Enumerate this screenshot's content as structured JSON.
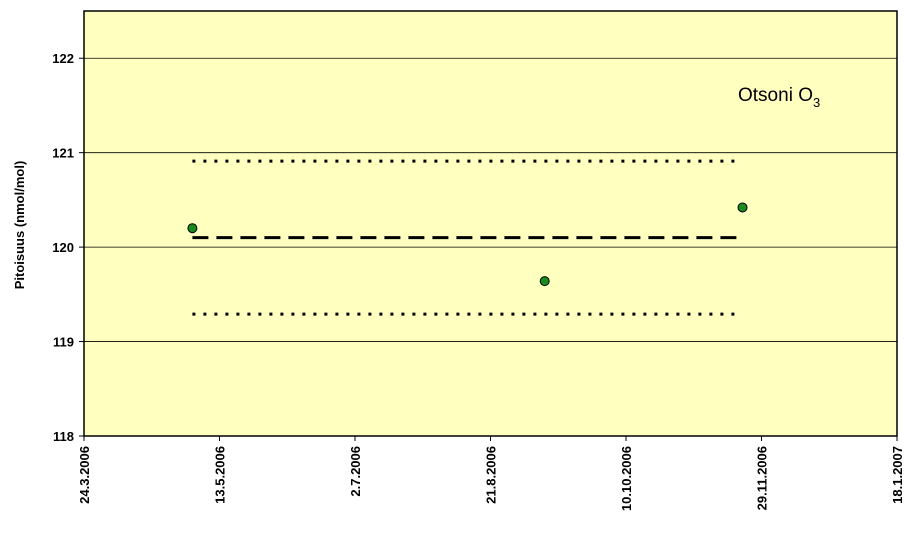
{
  "chart_data": {
    "type": "scatter",
    "annotation": {
      "text": "Otsoni O",
      "subscript": "3"
    },
    "y_label": "Pitoisuus (nmol/mol)",
    "xlim": [
      "24.3.2006",
      "18.1.2007"
    ],
    "xticks": [
      "24.3.2006",
      "13.5.2006",
      "2.7.2006",
      "21.8.2006",
      "10.10.2006",
      "29.11.2006",
      "18.1.2007"
    ],
    "ylim": [
      118,
      122.5
    ],
    "yticks": [
      118,
      119,
      120,
      121,
      122
    ],
    "grid": true,
    "legend": false,
    "background": "#ffffc0",
    "series": [
      {
        "kind": "points",
        "color": "#1a8a1a",
        "x": [
          "3.5.2006",
          "10.9.2006",
          "22.11.2006"
        ],
        "values": [
          120.2,
          119.64,
          120.42
        ]
      },
      {
        "kind": "line",
        "style": "dashed",
        "color": "#000000",
        "x": [
          "3.5.2006",
          "22.11.2006"
        ],
        "values": [
          120.1,
          120.1
        ]
      },
      {
        "kind": "line",
        "style": "dotted",
        "color": "#000000",
        "x": [
          "3.5.2006",
          "19.11.2006"
        ],
        "values": [
          120.91,
          120.91
        ]
      },
      {
        "kind": "line",
        "style": "dotted",
        "color": "#000000",
        "x": [
          "3.5.2006",
          "19.11.2006"
        ],
        "values": [
          119.29,
          119.29
        ]
      }
    ]
  }
}
